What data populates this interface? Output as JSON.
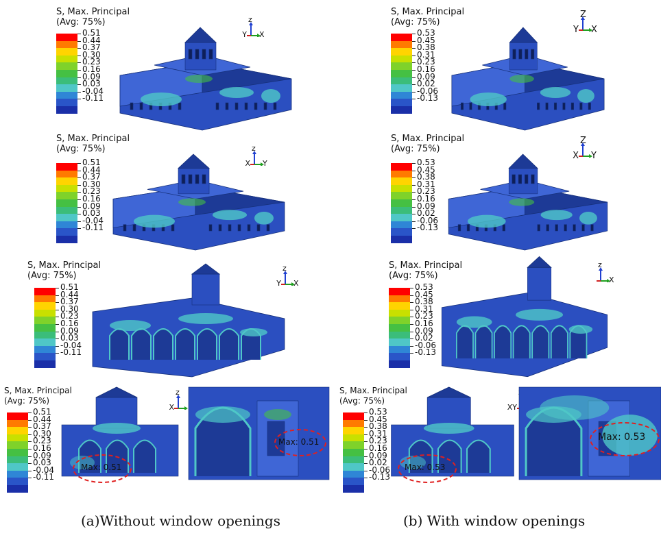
{
  "header": {
    "line1": "S, Max. Principal",
    "line2": "(Avg: 75%)"
  },
  "colors": [
    "#ff0000",
    "#ff7a00",
    "#ffd400",
    "#c8e000",
    "#7fd22a",
    "#45c043",
    "#3bbd7a",
    "#4fc7c7",
    "#2f86d6",
    "#2a55c8",
    "#1a2fa8"
  ],
  "left_legend": [
    "0.51",
    "0.44",
    "0.37",
    "0.30",
    "0.23",
    "0.16",
    "0.09",
    "0.03",
    "-0.04",
    "-0.11"
  ],
  "right_legend": [
    "0.53",
    "0.45",
    "0.38",
    "0.31",
    "0.23",
    "0.16",
    "0.09",
    "0.02",
    "-0.06",
    "-0.13"
  ],
  "axes": {
    "a1": {
      "up": "z",
      "left": "Y",
      "right": "X"
    },
    "a2": {
      "up": "z",
      "left": "X",
      "right": "Y"
    },
    "a3": {
      "up": "z",
      "left": "Y",
      "right": "X"
    },
    "a4": {
      "up": "z",
      "left": "X",
      "right": ""
    },
    "b1": {
      "up": "Z",
      "left": "Y",
      "right": "X"
    },
    "b2": {
      "up": "Z",
      "left": "X",
      "right": "Y"
    },
    "b3": {
      "up": "z",
      "left": "",
      "right": "X"
    },
    "b4": {
      "up": "z",
      "left": "XY",
      "right": ""
    }
  },
  "max_labels": {
    "left_a": "Max: 0.51",
    "left_b": "Max: 0.51",
    "right_a": "Max: 0.53",
    "right_b": "Max: 0.53"
  },
  "captions": {
    "left": "(a)Without window openings",
    "right": "(b) With window openings"
  }
}
